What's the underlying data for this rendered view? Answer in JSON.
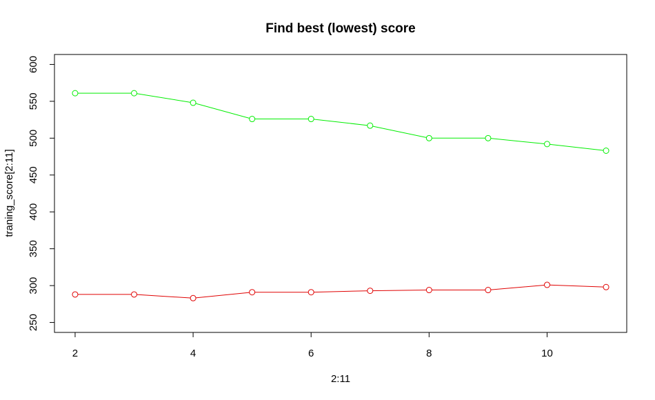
{
  "chart_data": {
    "type": "line",
    "title": "Find best (lowest) score",
    "xlabel": "2:11",
    "ylabel": "traning_score[2:11]",
    "x": [
      2,
      3,
      4,
      5,
      6,
      7,
      8,
      9,
      10,
      11
    ],
    "xlim": [
      1.65,
      11.35
    ],
    "ylim": [
      236.5,
      613.5
    ],
    "xticks": [
      2,
      4,
      6,
      8,
      10
    ],
    "yticks": [
      250,
      300,
      350,
      400,
      450,
      500,
      550,
      600
    ],
    "grid": false,
    "legend": "none",
    "series": [
      {
        "color": "#00ee00",
        "marker": "open-circle",
        "values": [
          561,
          561,
          548,
          526,
          526,
          517,
          500,
          500,
          492,
          483
        ]
      },
      {
        "color": "#e00000",
        "marker": "open-circle",
        "values": [
          288,
          288,
          283,
          291,
          291,
          293,
          294,
          294,
          301,
          298
        ]
      }
    ]
  }
}
